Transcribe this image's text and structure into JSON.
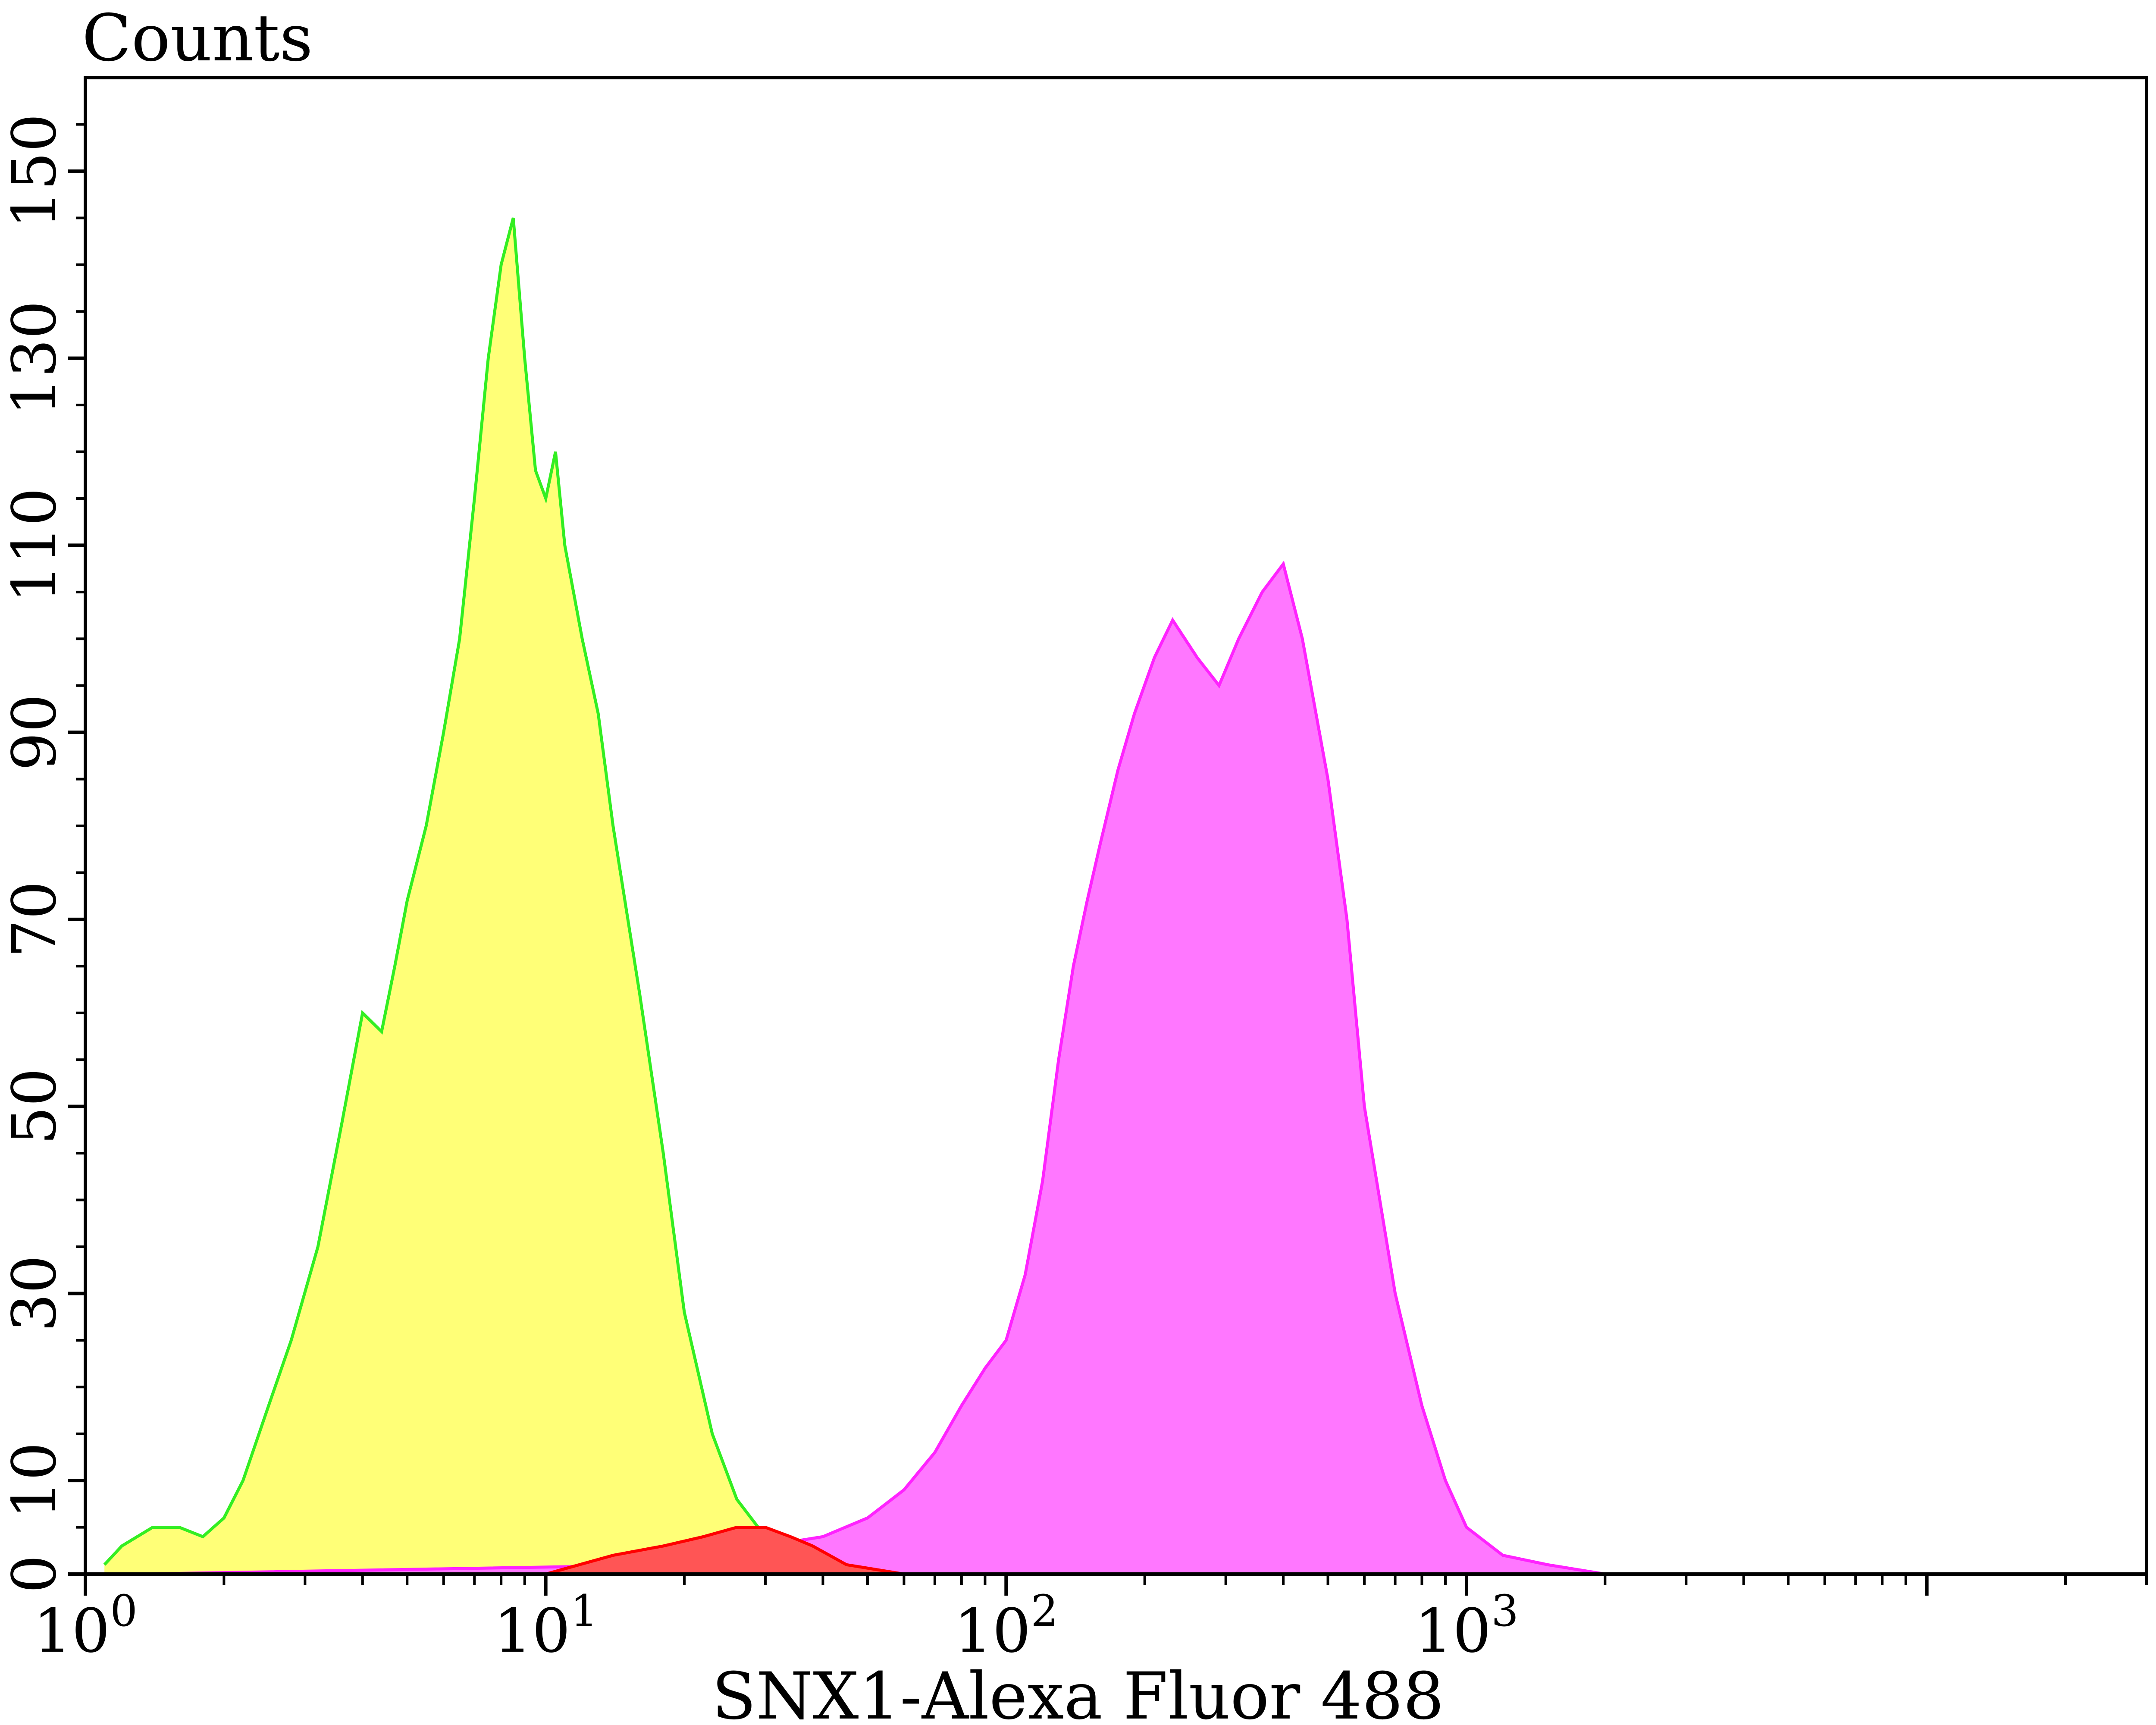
{
  "chart_data": {
    "type": "area",
    "title": "",
    "ylabel": "Counts",
    "xlabel": "SNX1-Alexa Fluor 488",
    "xscale": "log",
    "xlim": [
      1,
      30000
    ],
    "ylim": [
      0,
      160
    ],
    "x_ticks": [
      {
        "base": "10",
        "exp": "0",
        "value": 1
      },
      {
        "base": "10",
        "exp": "1",
        "value": 10
      },
      {
        "base": "10",
        "exp": "2",
        "value": 100
      },
      {
        "base": "10",
        "exp": "3",
        "value": 1000
      }
    ],
    "y_ticks": [
      "0",
      "10",
      "30",
      "50",
      "70",
      "90",
      "110",
      "130",
      "150"
    ],
    "grid": false,
    "series": [
      {
        "color_fill": "#ffff77",
        "color_line": "#33ee22",
        "points": [
          [
            1.1,
            1
          ],
          [
            1.2,
            3
          ],
          [
            1.4,
            5
          ],
          [
            1.6,
            5
          ],
          [
            1.8,
            4
          ],
          [
            2.0,
            6
          ],
          [
            2.2,
            10
          ],
          [
            2.5,
            18
          ],
          [
            2.8,
            25
          ],
          [
            3.2,
            35
          ],
          [
            3.6,
            48
          ],
          [
            4.0,
            60
          ],
          [
            4.4,
            58
          ],
          [
            4.7,
            65
          ],
          [
            5.0,
            72
          ],
          [
            5.5,
            80
          ],
          [
            6.0,
            90
          ],
          [
            6.5,
            100
          ],
          [
            7.0,
            115
          ],
          [
            7.5,
            130
          ],
          [
            8.0,
            140
          ],
          [
            8.5,
            145
          ],
          [
            9.0,
            130
          ],
          [
            9.5,
            118
          ],
          [
            10.0,
            115
          ],
          [
            10.5,
            120
          ],
          [
            11.0,
            110
          ],
          [
            12.0,
            100
          ],
          [
            13.0,
            92
          ],
          [
            14.0,
            80
          ],
          [
            16.0,
            62
          ],
          [
            18.0,
            45
          ],
          [
            20.0,
            28
          ],
          [
            23.0,
            15
          ],
          [
            26.0,
            8
          ],
          [
            30.0,
            4
          ],
          [
            35.0,
            2
          ],
          [
            40.0,
            1
          ],
          [
            50.0,
            0
          ]
        ]
      },
      {
        "color_fill": "#ff77ff",
        "color_line": "#ff22ff",
        "points": [
          [
            1.3,
            0
          ],
          [
            20,
            1
          ],
          [
            30,
            3
          ],
          [
            40,
            4
          ],
          [
            50,
            6
          ],
          [
            60,
            9
          ],
          [
            70,
            13
          ],
          [
            80,
            18
          ],
          [
            90,
            22
          ],
          [
            100,
            25
          ],
          [
            110,
            32
          ],
          [
            120,
            42
          ],
          [
            130,
            55
          ],
          [
            140,
            65
          ],
          [
            150,
            72
          ],
          [
            160,
            78
          ],
          [
            175,
            86
          ],
          [
            190,
            92
          ],
          [
            210,
            98
          ],
          [
            230,
            102
          ],
          [
            260,
            98
          ],
          [
            290,
            95
          ],
          [
            320,
            100
          ],
          [
            360,
            105
          ],
          [
            400,
            108
          ],
          [
            440,
            100
          ],
          [
            500,
            85
          ],
          [
            550,
            70
          ],
          [
            600,
            50
          ],
          [
            700,
            30
          ],
          [
            800,
            18
          ],
          [
            900,
            10
          ],
          [
            1000,
            5
          ],
          [
            1200,
            2
          ],
          [
            1500,
            1
          ],
          [
            2000,
            0
          ]
        ]
      },
      {
        "color_fill": "#ff5555",
        "color_line": "#ff0000",
        "points": [
          [
            10,
            0
          ],
          [
            14,
            2
          ],
          [
            18,
            3
          ],
          [
            22,
            4
          ],
          [
            26,
            5
          ],
          [
            30,
            5
          ],
          [
            34,
            4
          ],
          [
            38,
            3
          ],
          [
            45,
            1
          ],
          [
            60,
            0
          ]
        ]
      }
    ]
  }
}
